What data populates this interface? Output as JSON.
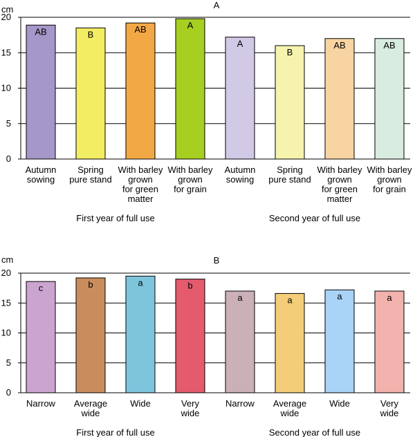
{
  "chart_data": [
    {
      "type": "bar",
      "title": "A",
      "ylabel": "cm",
      "ylim": [
        0,
        20
      ],
      "yticks": [
        0,
        5,
        10,
        15,
        20
      ],
      "grid": "horizontal",
      "categories": [
        [
          "Autumn",
          "sowing"
        ],
        [
          "Spring",
          "pure stand"
        ],
        [
          "With barley",
          "grown",
          "for green",
          "matter"
        ],
        [
          "With barley",
          "grown",
          "for grain"
        ],
        [
          "Autumn",
          "sowing"
        ],
        [
          "Spring",
          "pure stand"
        ],
        [
          "With barley",
          "grown",
          "for green",
          "matter"
        ],
        [
          "With barley",
          "grown",
          "for grain"
        ]
      ],
      "groups": [
        {
          "label": "First year of full use",
          "span": [
            0,
            3
          ]
        },
        {
          "label": "Second year of full use",
          "span": [
            4,
            7
          ]
        }
      ],
      "values": [
        18.9,
        18.5,
        19.2,
        19.8,
        17.2,
        16.0,
        17.0,
        17.0
      ],
      "significance": [
        "AB",
        "B",
        "AB",
        "A",
        "A",
        "B",
        "AB",
        "AB"
      ],
      "colors": [
        "#a597c9",
        "#f2ed63",
        "#f3a846",
        "#a7cf21",
        "#d2c9e6",
        "#f6f3ae",
        "#f8d4a2",
        "#d8ece0"
      ]
    },
    {
      "type": "bar",
      "title": "B",
      "ylabel": "cm",
      "ylim": [
        0,
        20
      ],
      "yticks": [
        0,
        5,
        10,
        15,
        20
      ],
      "grid": "horizontal",
      "categories": [
        [
          "Narrow"
        ],
        [
          "Average",
          "wide"
        ],
        [
          "Wide"
        ],
        [
          "Very",
          "wide"
        ],
        [
          "Narrow"
        ],
        [
          "Average",
          "wide"
        ],
        [
          "Wide"
        ],
        [
          "Very",
          "wide"
        ]
      ],
      "groups": [
        {
          "label": "First year of full use",
          "span": [
            0,
            3
          ]
        },
        {
          "label": "Second year of full use",
          "span": [
            4,
            7
          ]
        }
      ],
      "values": [
        18.6,
        19.2,
        19.5,
        19.0,
        17.0,
        16.6,
        17.2,
        17.0
      ],
      "significance": [
        "c",
        "b",
        "a",
        "b",
        "a",
        "a",
        "a",
        "a"
      ],
      "colors": [
        "#cba5cf",
        "#c98d5d",
        "#7ec5dc",
        "#e45b6e",
        "#cbb0b8",
        "#f3cd79",
        "#a9d3f7",
        "#f2b2ad"
      ]
    }
  ]
}
